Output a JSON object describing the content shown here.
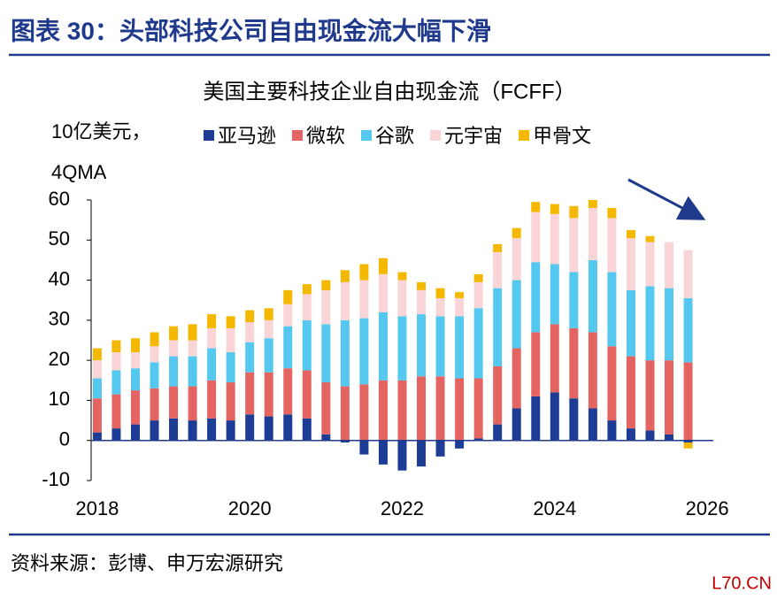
{
  "header": {
    "title": "图表 30：头部科技公司自由现金流大幅下滑"
  },
  "chart_data": {
    "type": "bar",
    "stacked": true,
    "title": "美国主要科技企业自由现金流（FCFF）",
    "ylabel_lines": [
      "10亿美元，",
      "4QMA"
    ],
    "x": [
      2018,
      2018.25,
      2018.5,
      2018.75,
      2019,
      2019.25,
      2019.5,
      2019.75,
      2020,
      2020.25,
      2020.5,
      2020.75,
      2021,
      2021.25,
      2021.5,
      2021.75,
      2022,
      2022.25,
      2022.5,
      2022.75,
      2023,
      2023.25,
      2023.5,
      2023.75,
      2024,
      2024.25,
      2024.5,
      2024.75,
      2025,
      2025.25,
      2025.5,
      2025.75
    ],
    "xlim": [
      2017.92,
      2026.08
    ],
    "xticks": [
      2018,
      2020,
      2022,
      2024,
      2026
    ],
    "ylim": [
      -10,
      60
    ],
    "yticks": [
      -10,
      0,
      10,
      20,
      30,
      40,
      50,
      60
    ],
    "grid": false,
    "legend": "top",
    "series": [
      {
        "name": "亚马逊",
        "color": "#1c3c96",
        "values": [
          2,
          3,
          4,
          5,
          5.5,
          5,
          5.5,
          5,
          6.5,
          6,
          6.5,
          5.5,
          1.5,
          -0.5,
          -3.5,
          -6,
          -7.5,
          -6.5,
          -4,
          -2,
          0.5,
          4,
          8,
          11,
          12,
          10.5,
          8,
          5,
          3,
          2.5,
          1.5,
          -0.5
        ]
      },
      {
        "name": "微软",
        "color": "#e46461",
        "values": [
          8.5,
          8.5,
          8.5,
          8,
          8,
          8.5,
          9.5,
          9.5,
          10.5,
          11,
          11.5,
          12,
          13,
          13.5,
          14,
          15,
          15,
          16,
          16,
          15.5,
          15,
          14.5,
          15,
          16,
          17,
          17.5,
          19,
          18.5,
          18,
          17.5,
          18.5,
          19.5
        ]
      },
      {
        "name": "谷歌",
        "color": "#55c8f0",
        "values": [
          5,
          6,
          5.5,
          6.5,
          7.5,
          7.5,
          8,
          7.5,
          7.5,
          8.5,
          10.5,
          12.5,
          14.5,
          16.5,
          16.5,
          17,
          16,
          15.5,
          15,
          15.5,
          17.5,
          19.5,
          17,
          17.5,
          15,
          14,
          18,
          18.5,
          16.5,
          18.5,
          18,
          16
        ]
      },
      {
        "name": "元宇宙",
        "color": "#f9d5d7",
        "values": [
          4.5,
          4.5,
          4,
          4,
          4,
          4,
          5,
          6,
          5,
          4.5,
          5.5,
          6.5,
          8.5,
          9.5,
          9.5,
          9.5,
          9,
          6,
          4.5,
          4.5,
          6.5,
          9,
          10.5,
          12.5,
          12.5,
          13.5,
          13,
          13.5,
          13,
          11,
          11.5,
          12
        ]
      },
      {
        "name": "甲骨文",
        "color": "#f5b800",
        "values": [
          3,
          3,
          3.5,
          3.5,
          3.5,
          4,
          3.5,
          3,
          3,
          3,
          3.5,
          2.5,
          2.5,
          3,
          4,
          4,
          2,
          2,
          2.5,
          1.5,
          2,
          2,
          2.5,
          2.5,
          2.5,
          3,
          2,
          2.5,
          2,
          1.5,
          0,
          -1.5
        ]
      }
    ]
  },
  "source": "资料来源：彭博、申万宏源研究",
  "watermark": "L70.CN"
}
